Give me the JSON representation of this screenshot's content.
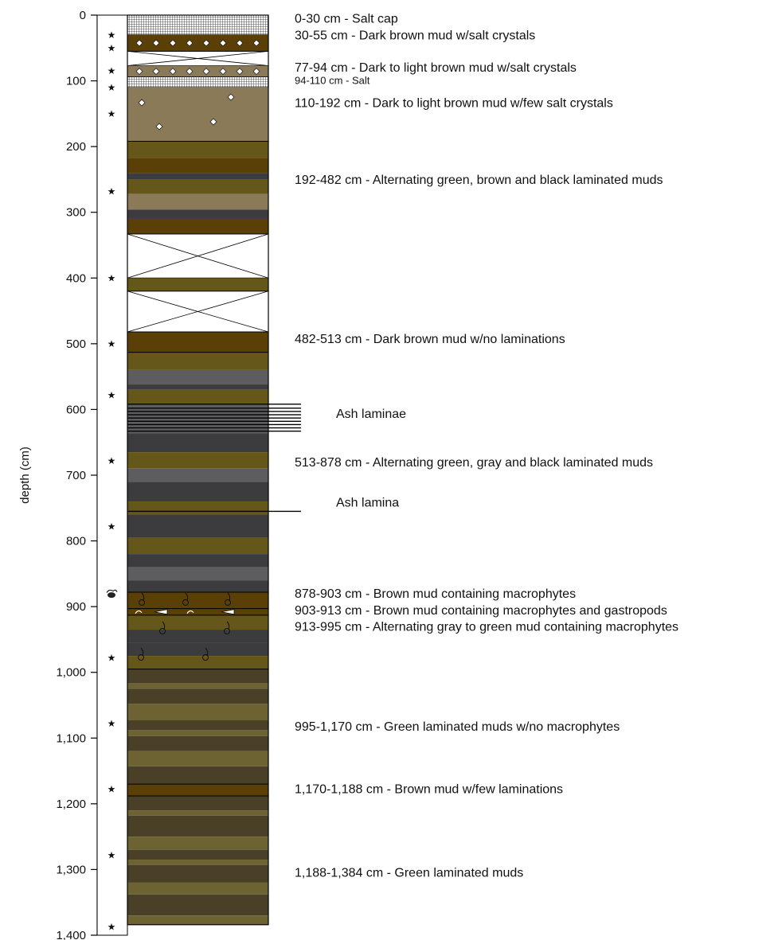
{
  "axis": {
    "label": "depth (cm)",
    "min": 0,
    "max": 1400,
    "ticks": [
      0,
      100,
      200,
      300,
      400,
      500,
      600,
      700,
      800,
      900,
      1000,
      1100,
      1200,
      1300,
      1400
    ],
    "tick_labels": [
      "0",
      "100",
      "200",
      "300",
      "400",
      "500",
      "600",
      "700",
      "800",
      "900",
      "1,000",
      "1,100",
      "1,200",
      "1,300",
      "1,400"
    ]
  },
  "sample_depths": [
    30,
    50,
    85,
    110,
    150,
    268,
    400,
    500,
    578,
    678,
    778,
    978,
    1078,
    1178,
    1278,
    1387
  ],
  "special_sample_depth": 880,
  "lithology_colors": {
    "salt": "#ffffff",
    "dark_brown": "#5a4006",
    "brown_mud": "#8a7a58",
    "olive": "#65561a",
    "olive_light": "#7a6a2e",
    "gray": "#5d5d5f",
    "dark_gray": "#3c3c3f",
    "green_dark": "#4a4028",
    "green_mid": "#5b5228",
    "green_light": "#6c6232",
    "missing": "#ffffff"
  },
  "layers": [
    {
      "top": 0,
      "bottom": 30,
      "kind": "salt"
    },
    {
      "top": 30,
      "bottom": 55,
      "kind": "dark_brown",
      "pattern": "crystals"
    },
    {
      "top": 55,
      "bottom": 77,
      "kind": "missing"
    },
    {
      "top": 77,
      "bottom": 94,
      "kind": "brown_mud",
      "pattern": "crystals"
    },
    {
      "top": 94,
      "bottom": 110,
      "kind": "salt"
    },
    {
      "top": 110,
      "bottom": 192,
      "kind": "brown_mud"
    },
    {
      "top": 192,
      "bottom": 217,
      "kind": "olive"
    },
    {
      "top": 217,
      "bottom": 240,
      "kind": "dark_brown"
    },
    {
      "top": 240,
      "bottom": 250,
      "kind": "dark_gray"
    },
    {
      "top": 250,
      "bottom": 272,
      "kind": "olive"
    },
    {
      "top": 272,
      "bottom": 296,
      "kind": "brown_mud"
    },
    {
      "top": 296,
      "bottom": 310,
      "kind": "dark_gray"
    },
    {
      "top": 310,
      "bottom": 333,
      "kind": "dark_brown"
    },
    {
      "top": 333,
      "bottom": 400,
      "kind": "missing"
    },
    {
      "top": 400,
      "bottom": 420,
      "kind": "olive"
    },
    {
      "top": 420,
      "bottom": 482,
      "kind": "missing"
    },
    {
      "top": 482,
      "bottom": 513,
      "kind": "dark_brown"
    },
    {
      "top": 513,
      "bottom": 540,
      "kind": "olive"
    },
    {
      "top": 540,
      "bottom": 562,
      "kind": "gray"
    },
    {
      "top": 562,
      "bottom": 570,
      "kind": "dark_gray"
    },
    {
      "top": 570,
      "bottom": 592,
      "kind": "olive"
    },
    {
      "top": 592,
      "bottom": 636,
      "kind": "gray"
    },
    {
      "top": 636,
      "bottom": 665,
      "kind": "dark_gray"
    },
    {
      "top": 665,
      "bottom": 690,
      "kind": "olive"
    },
    {
      "top": 690,
      "bottom": 710,
      "kind": "gray"
    },
    {
      "top": 710,
      "bottom": 740,
      "kind": "dark_gray"
    },
    {
      "top": 740,
      "bottom": 760,
      "kind": "olive"
    },
    {
      "top": 760,
      "bottom": 795,
      "kind": "dark_gray"
    },
    {
      "top": 795,
      "bottom": 820,
      "kind": "olive"
    },
    {
      "top": 820,
      "bottom": 840,
      "kind": "dark_gray"
    },
    {
      "top": 840,
      "bottom": 860,
      "kind": "gray"
    },
    {
      "top": 860,
      "bottom": 878,
      "kind": "dark_gray"
    },
    {
      "top": 878,
      "bottom": 903,
      "kind": "dark_brown",
      "pattern": "macrophytes"
    },
    {
      "top": 903,
      "bottom": 913,
      "kind": "dark_brown",
      "pattern": "gastropods"
    },
    {
      "top": 913,
      "bottom": 935,
      "kind": "olive"
    },
    {
      "top": 935,
      "bottom": 955,
      "kind": "dark_gray"
    },
    {
      "top": 955,
      "bottom": 975,
      "kind": "dark_gray"
    },
    {
      "top": 975,
      "bottom": 995,
      "kind": "olive"
    },
    {
      "top": 995,
      "bottom": 1017,
      "kind": "green_dark"
    },
    {
      "top": 1017,
      "bottom": 1025,
      "kind": "green_light"
    },
    {
      "top": 1025,
      "bottom": 1048,
      "kind": "green_dark"
    },
    {
      "top": 1048,
      "bottom": 1073,
      "kind": "green_light"
    },
    {
      "top": 1073,
      "bottom": 1088,
      "kind": "green_dark"
    },
    {
      "top": 1088,
      "bottom": 1097,
      "kind": "green_light"
    },
    {
      "top": 1097,
      "bottom": 1120,
      "kind": "green_dark"
    },
    {
      "top": 1120,
      "bottom": 1143,
      "kind": "green_light"
    },
    {
      "top": 1143,
      "bottom": 1170,
      "kind": "green_dark"
    },
    {
      "top": 1170,
      "bottom": 1188,
      "kind": "dark_brown"
    },
    {
      "top": 1188,
      "bottom": 1210,
      "kind": "green_dark"
    },
    {
      "top": 1210,
      "bottom": 1218,
      "kind": "green_light"
    },
    {
      "top": 1218,
      "bottom": 1250,
      "kind": "green_dark"
    },
    {
      "top": 1250,
      "bottom": 1270,
      "kind": "green_light"
    },
    {
      "top": 1270,
      "bottom": 1285,
      "kind": "green_dark"
    },
    {
      "top": 1285,
      "bottom": 1293,
      "kind": "green_light"
    },
    {
      "top": 1293,
      "bottom": 1320,
      "kind": "green_dark"
    },
    {
      "top": 1320,
      "bottom": 1338,
      "kind": "green_light"
    },
    {
      "top": 1338,
      "bottom": 1370,
      "kind": "green_dark"
    },
    {
      "top": 1370,
      "bottom": 1384,
      "kind": "green_light"
    }
  ],
  "crystal_depths": [
    42,
    86,
    135,
    125,
    160,
    165
  ],
  "macrophyte_depths": [
    888,
    940,
    968
  ],
  "ash_laminae_depths": [
    592,
    598,
    603,
    608,
    613,
    618,
    623,
    628,
    633
  ],
  "ash_lamina_depth": 755,
  "bed_lines": [
    192,
    482,
    513,
    878,
    903,
    913,
    995,
    1170,
    1188
  ],
  "annotations": [
    {
      "text": "0-30 cm - Salt cap",
      "depth": 5,
      "size": "normal"
    },
    {
      "text": "30-55 cm - Dark brown mud w/salt crystals",
      "depth": 30,
      "size": "normal"
    },
    {
      "text": "77-94 cm - Dark to light brown mud w/salt crystals",
      "depth": 79,
      "size": "normal"
    },
    {
      "text": "94-110 cm - Salt",
      "depth": 99,
      "size": "small"
    },
    {
      "text": "110-192 cm - Dark to light brown mud w/few salt crystals",
      "depth": 133,
      "size": "normal"
    },
    {
      "text": "192-482 cm - Alternating green, brown and black laminated muds",
      "depth": 250,
      "size": "normal"
    },
    {
      "text": "482-513 cm - Dark brown mud w/no laminations",
      "depth": 492,
      "size": "normal"
    },
    {
      "text": "Ash laminae",
      "depth": 606,
      "size": "normal",
      "indent": true
    },
    {
      "text": "513-878 cm - Alternating green, gray and black laminated muds",
      "depth": 680,
      "size": "normal"
    },
    {
      "text": "Ash lamina",
      "depth": 741,
      "size": "normal",
      "indent": true
    },
    {
      "text": "878-903 cm - Brown mud containing macrophytes",
      "depth": 880,
      "size": "normal"
    },
    {
      "text": "903-913 cm - Brown mud containing macrophytes and gastropods",
      "depth": 905,
      "size": "normal"
    },
    {
      "text": "913-995 cm - Alternating gray to green mud containing macrophytes",
      "depth": 930,
      "size": "normal"
    },
    {
      "text": "995-1,170 cm - Green laminated muds w/no macrophytes",
      "depth": 1082,
      "size": "normal"
    },
    {
      "text": "1,170-1,188 cm - Brown mud w/few laminations",
      "depth": 1177,
      "size": "normal"
    },
    {
      "text": "1,188-1,384 cm - Green laminated muds",
      "depth": 1304,
      "size": "normal"
    }
  ]
}
